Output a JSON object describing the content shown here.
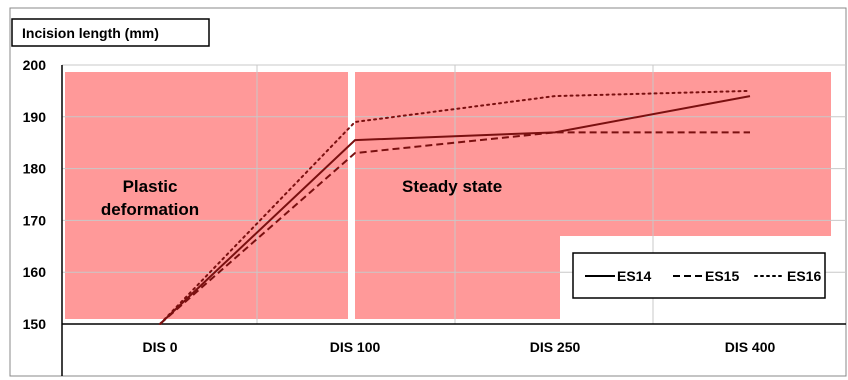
{
  "chart_data": {
    "type": "line",
    "title": "Incision length (mm)",
    "categories": [
      "DIS 0",
      "DIS 100",
      "DIS 250",
      "DIS 400"
    ],
    "ylim": [
      150,
      200
    ],
    "yticks": [
      150,
      160,
      170,
      180,
      190,
      200
    ],
    "grid": true,
    "legend_position": "bottom-right",
    "series": [
      {
        "name": "ES14",
        "style": "solid",
        "values": [
          150,
          185.5,
          187,
          194
        ]
      },
      {
        "name": "ES15",
        "style": "dashed",
        "values": [
          150,
          183,
          187,
          187
        ]
      },
      {
        "name": "ES16",
        "style": "dotted",
        "values": [
          150,
          189,
          194,
          195
        ]
      }
    ],
    "regions": [
      {
        "label_lines": [
          "Plastic",
          "deformation"
        ],
        "color": "#ff9999"
      },
      {
        "label_lines": [
          "Steady state"
        ],
        "color": "#ff9999"
      }
    ],
    "line_color": "#7a1010"
  }
}
